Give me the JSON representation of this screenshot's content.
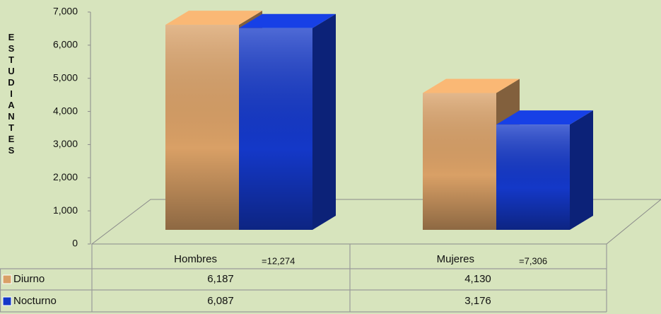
{
  "chart_data": {
    "type": "bar3d",
    "y_label": "ESTUDIANTES",
    "categories": [
      "Hombres",
      "Mujeres"
    ],
    "annotations": [
      "=12,274",
      "=7,306"
    ],
    "series": [
      {
        "name": "Diurno",
        "color": "#d9a066",
        "values": [
          6187,
          4130
        ],
        "value_labels": [
          "6,187",
          "4,130"
        ]
      },
      {
        "name": "Nocturno",
        "color": "#1438c8",
        "values": [
          6087,
          3176
        ],
        "value_labels": [
          "6,087",
          "3,176"
        ]
      }
    ],
    "ylim": [
      0,
      7000
    ],
    "yticks": [
      0,
      {
        "value": 1000,
        "label": "1,000"
      },
      {
        "value": 2000,
        "label": "2,000"
      },
      {
        "value": 3000,
        "label": "3,000"
      },
      {
        "value": 4000,
        "label": "4,000"
      },
      {
        "value": 5000,
        "label": "5,000"
      },
      {
        "value": 6000,
        "label": "6,000"
      },
      {
        "value": 7000,
        "label": "7,000"
      }
    ],
    "grid": false
  }
}
